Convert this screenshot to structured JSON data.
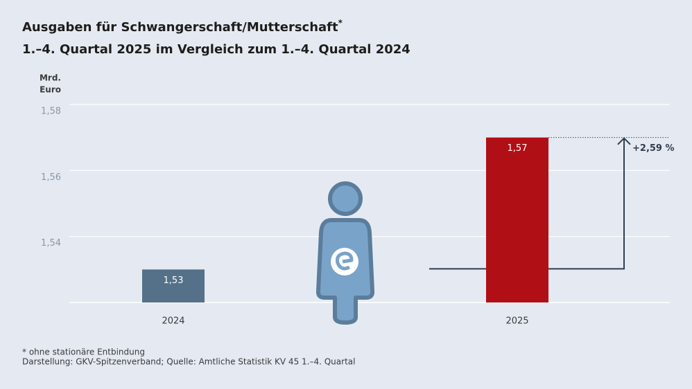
{
  "chart_data": {
    "type": "bar",
    "title": "Ausgaben für Schwangerschaft/Mutterschaft",
    "title_marker": "*",
    "subtitle": "1.–4. Quartal 2025 im Vergleich zum 1.–4. Quartal 2024",
    "ylabel": [
      "Mrd.",
      "Euro"
    ],
    "categories": [
      "2024",
      "2025"
    ],
    "values": [
      1.53,
      1.57
    ],
    "value_labels": [
      "1,53",
      "1,57"
    ],
    "colors": [
      "#557089",
      "#b01015"
    ],
    "ylim": [
      1.52,
      1.58
    ],
    "yticks": [
      {
        "value": 1.54,
        "label": "1,54"
      },
      {
        "value": 1.56,
        "label": "1,56"
      },
      {
        "value": 1.58,
        "label": "1,58"
      }
    ],
    "grid": true,
    "annotation": "+2,59 %",
    "footnote": "* ohne stationäre Entbindung",
    "source": "Darstellung: GKV-Spitzenverband; Quelle: Amtliche Statistik KV 45 1.–4. Quartal"
  }
}
